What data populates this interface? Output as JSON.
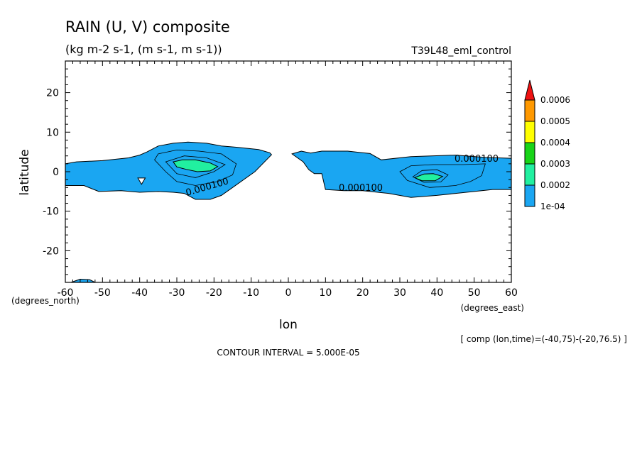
{
  "chart_data": {
    "type": "contour",
    "title": "RAIN (U, V) composite",
    "subtitle": "(kg m-2 s-1, (m s-1, m s-1))",
    "run_label": "T39L48_eml_control",
    "xlabel": "lon",
    "x_unit_label": "(degrees_east)",
    "ylabel": "latitude",
    "y_unit_label": "(degrees_north)",
    "xlim": [
      -60,
      60
    ],
    "ylim": [
      -28,
      28
    ],
    "x_ticks": [
      -60,
      -50,
      -40,
      -30,
      -20,
      -10,
      0,
      10,
      20,
      30,
      40,
      50,
      60
    ],
    "x_tick_labels": [
      "-60",
      "-50",
      "-40",
      "-30",
      "-20",
      "-10",
      "0",
      "10",
      "20",
      "30",
      "40",
      "50",
      "60"
    ],
    "y_ticks": [
      -20,
      -10,
      0,
      10,
      20
    ],
    "y_tick_labels": [
      "-20",
      "-10",
      "0",
      "10",
      "20"
    ],
    "grid": false,
    "footer": "CONTOUR INTERVAL = 5.000E-05",
    "comp_note": "[ comp (lon,time)=(-40,75)-(-20,76.5) ]",
    "colorbar": {
      "labels": [
        "1e-04",
        "0.0002",
        "0.0003",
        "0.0004",
        "0.0005",
        "0.0006"
      ],
      "colors": [
        "#1aa6f2",
        "#21f0a0",
        "#18d418",
        "#ffff00",
        "#ff9900",
        "#ee1111"
      ]
    },
    "contour_labels": [
      "0.000100",
      "0.000100",
      "0.000100"
    ],
    "regions": [
      {
        "name": "west-band-level1",
        "level": 0,
        "points": [
          [
            -60,
            2
          ],
          [
            -57,
            2.5
          ],
          [
            -50,
            2.8
          ],
          [
            -43,
            3.5
          ],
          [
            -40,
            4.2
          ],
          [
            -38,
            5
          ],
          [
            -35,
            6.5
          ],
          [
            -31,
            7.2
          ],
          [
            -27,
            7.5
          ],
          [
            -22,
            7.2
          ],
          [
            -18,
            6.5
          ],
          [
            -14,
            6.2
          ],
          [
            -8,
            5.6
          ],
          [
            -5,
            4.8
          ],
          [
            -4.5,
            4.3
          ],
          [
            -9,
            0
          ],
          [
            -15,
            -4
          ],
          [
            -18,
            -6
          ],
          [
            -21,
            -7
          ],
          [
            -25,
            -7
          ],
          [
            -28,
            -5.5
          ],
          [
            -31,
            -5.2
          ],
          [
            -35,
            -5
          ],
          [
            -40,
            -5.2
          ],
          [
            -45,
            -4.8
          ],
          [
            -51,
            -5
          ],
          [
            -55,
            -3.5
          ],
          [
            -60,
            -3.5
          ]
        ]
      },
      {
        "name": "west-core-level2",
        "level": 1,
        "points": [
          [
            -31,
            2.5
          ],
          [
            -28.5,
            3
          ],
          [
            -25,
            3
          ],
          [
            -21,
            2.2
          ],
          [
            -19,
            1.3
          ],
          [
            -21,
            0.2
          ],
          [
            -24.5,
            0
          ],
          [
            -27.5,
            0.6
          ],
          [
            -30,
            1.2
          ]
        ]
      },
      {
        "name": "east-band-level1",
        "level": 0,
        "points": [
          [
            1,
            4.5
          ],
          [
            3.5,
            5.2
          ],
          [
            6,
            4.7
          ],
          [
            9,
            5.2
          ],
          [
            16,
            5.2
          ],
          [
            22,
            4.6
          ],
          [
            25,
            3
          ],
          [
            33,
            3.8
          ],
          [
            45,
            4.2
          ],
          [
            53,
            3.6
          ],
          [
            60,
            3.4
          ],
          [
            60,
            -4.5
          ],
          [
            55,
            -4.5
          ],
          [
            45,
            -5.5
          ],
          [
            40,
            -6
          ],
          [
            33,
            -6.5
          ],
          [
            27,
            -5.5
          ],
          [
            20,
            -4.8
          ],
          [
            15,
            -4.8
          ],
          [
            10,
            -4.5
          ],
          [
            9,
            -0.5
          ],
          [
            7,
            -0.5
          ],
          [
            5.5,
            0.5
          ],
          [
            4,
            2.5
          ]
        ]
      },
      {
        "name": "east-core-level2",
        "level": 1,
        "points": [
          [
            34,
            -1.5
          ],
          [
            36.5,
            -0.6
          ],
          [
            39,
            -0.5
          ],
          [
            41.5,
            -1.2
          ],
          [
            39.5,
            -2.3
          ],
          [
            36,
            -2.3
          ]
        ]
      },
      {
        "name": "sw-corner-patch",
        "level": 0,
        "points": [
          [
            -58.5,
            -28
          ],
          [
            -56,
            -27.2
          ],
          [
            -53.5,
            -27.3
          ],
          [
            -52,
            -28
          ]
        ]
      }
    ],
    "contour_lines": [
      {
        "name": "west-contour-outer",
        "closed": true,
        "points": [
          [
            -35,
            4.5
          ],
          [
            -30,
            5.5
          ],
          [
            -24,
            5.2
          ],
          [
            -18,
            4.5
          ],
          [
            -14,
            2
          ],
          [
            -15,
            -0.8
          ],
          [
            -19,
            -2.5
          ],
          [
            -25,
            -3.5
          ],
          [
            -30,
            -2.5
          ],
          [
            -33,
            0
          ],
          [
            -36,
            3
          ]
        ]
      },
      {
        "name": "west-contour-inner",
        "closed": true,
        "points": [
          [
            -33,
            2.5
          ],
          [
            -28,
            4
          ],
          [
            -22,
            3.5
          ],
          [
            -17,
            1.8
          ],
          [
            -20,
            0
          ],
          [
            -25,
            -1.5
          ],
          [
            -30,
            -0.5
          ]
        ]
      },
      {
        "name": "east-contour-outer",
        "closed": true,
        "points": [
          [
            30,
            0
          ],
          [
            33,
            1.5
          ],
          [
            39,
            1.8
          ],
          [
            47,
            1.8
          ],
          [
            53,
            2
          ],
          [
            52,
            -1
          ],
          [
            49,
            -2.5
          ],
          [
            45,
            -3.5
          ],
          [
            38,
            -4
          ],
          [
            32,
            -2.2
          ]
        ]
      },
      {
        "name": "east-contour-inner",
        "closed": true,
        "points": [
          [
            33.5,
            -1.3
          ],
          [
            36,
            0.3
          ],
          [
            40,
            0.5
          ],
          [
            43,
            -0.8
          ],
          [
            41,
            -2.6
          ],
          [
            36.5,
            -2.7
          ]
        ]
      }
    ],
    "hollows": [
      {
        "name": "west-band-hole",
        "points": [
          [
            -40.5,
            -1.6
          ],
          [
            -38.5,
            -1.6
          ],
          [
            -39.5,
            -3.2
          ]
        ]
      }
    ]
  }
}
